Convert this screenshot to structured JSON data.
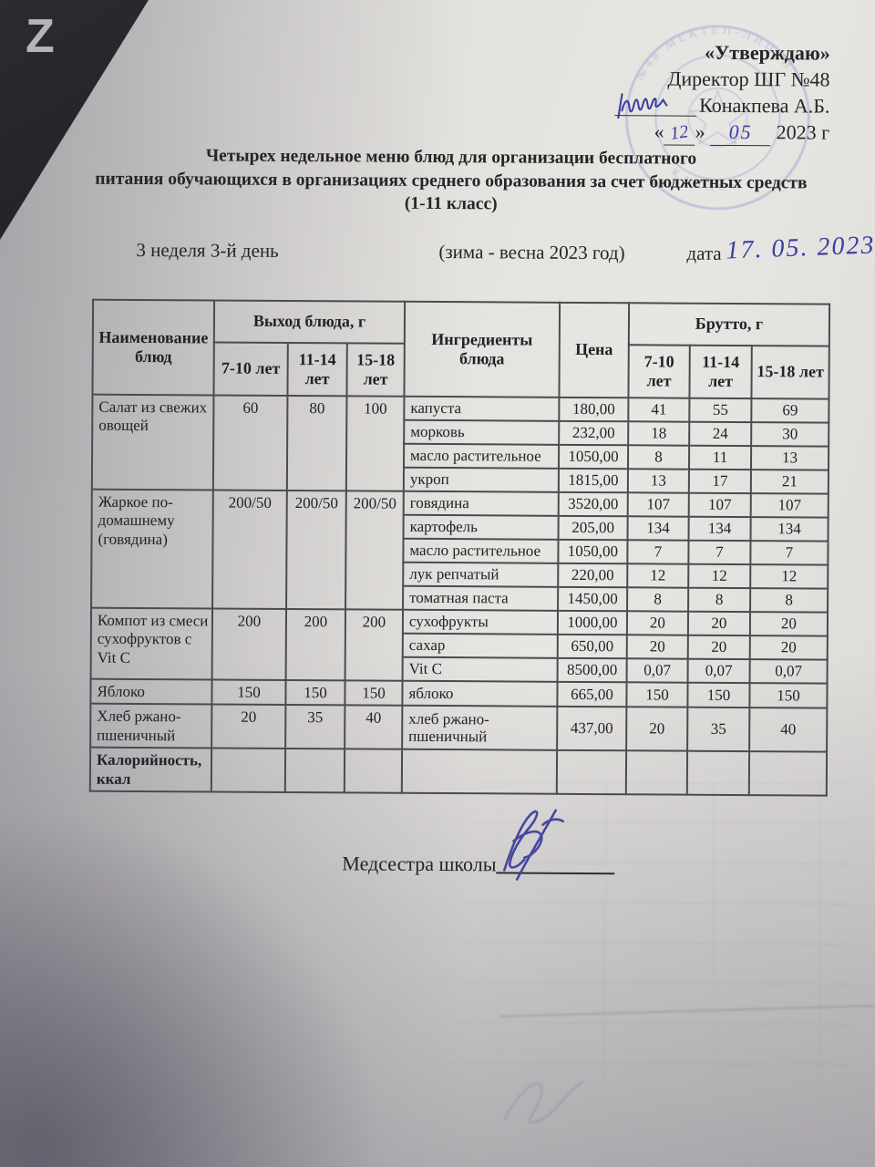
{
  "scene": {
    "keyboard_key": "Z"
  },
  "colors": {
    "ink_blue": "#3a3da3",
    "stamp_blue": "#8f9ed2",
    "paper": "#e5e3df"
  },
  "approval": {
    "approve_word": "«Утверждаю»",
    "director_line": "Директор ШГ №48",
    "director_name": "Конакпева А.Б.",
    "open_quote": "«",
    "close_quote": "»",
    "hand_day": "12",
    "hand_month": "05",
    "year_text": "2023 г"
  },
  "stamp": {
    "arc_top": "№48 МЕКТЕП-ЛИЦЕЙ",
    "arc_bottom": "ҚАЛАСЫ"
  },
  "title": {
    "line1": "Четырех недельное меню блюд для организации бесплатного",
    "line2": "питания обучающихся в организациях среднего образования за счет бюджетных средств",
    "line3": "(1-11 класс)"
  },
  "meta": {
    "week": "3 неделя 3-й день",
    "season": "(зима - весна 2023 год)",
    "date_label": "дата",
    "hand_date": "17. 05. 2023"
  },
  "table": {
    "headers": {
      "name": "Наименование блюд",
      "output": "Выход блюда, г",
      "ingredients": "Ингредиенты блюда",
      "price": "Цена",
      "brutto": "Брутто, г",
      "age1": "7-10 лет",
      "age2": "11-14 лет",
      "age3": "15-18 лет"
    },
    "rows": [
      {
        "dish": "Салат из свежих овощей",
        "out": [
          "60",
          "80",
          "100"
        ],
        "bold": false,
        "ingredients": [
          {
            "name": "капуста",
            "price": "180,00",
            "b": [
              "41",
              "55",
              "69"
            ]
          },
          {
            "name": "морковь",
            "price": "232,00",
            "b": [
              "18",
              "24",
              "30"
            ]
          },
          {
            "name": "масло растительное",
            "price": "1050,00",
            "b": [
              "8",
              "11",
              "13"
            ]
          },
          {
            "name": "укроп",
            "price": "1815,00",
            "b": [
              "13",
              "17",
              "21"
            ]
          }
        ]
      },
      {
        "dish": "Жаркое по-домашнему (говядина)",
        "out": [
          "200/50",
          "200/50",
          "200/50"
        ],
        "bold": false,
        "ingredients": [
          {
            "name": "говядина",
            "price": "3520,00",
            "b": [
              "107",
              "107",
              "107"
            ]
          },
          {
            "name": "картофель",
            "price": "205,00",
            "b": [
              "134",
              "134",
              "134"
            ]
          },
          {
            "name": "масло растительное",
            "price": "1050,00",
            "b": [
              "7",
              "7",
              "7"
            ]
          },
          {
            "name": "лук репчатый",
            "price": "220,00",
            "b": [
              "12",
              "12",
              "12"
            ]
          },
          {
            "name": "томатная паста",
            "price": "1450,00",
            "b": [
              "8",
              "8",
              "8"
            ]
          }
        ]
      },
      {
        "dish": "Компот из смеси сухофруктов с Vit C",
        "out": [
          "200",
          "200",
          "200"
        ],
        "bold": false,
        "ingredients": [
          {
            "name": "сухофрукты",
            "price": "1000,00",
            "b": [
              "20",
              "20",
              "20"
            ]
          },
          {
            "name": "сахар",
            "price": "650,00",
            "b": [
              "20",
              "20",
              "20"
            ]
          },
          {
            "name": "Vit C",
            "price": "8500,00",
            "b": [
              "0,07",
              "0,07",
              "0,07"
            ]
          }
        ]
      },
      {
        "dish": "Яблоко",
        "out": [
          "150",
          "150",
          "150"
        ],
        "bold": false,
        "ingredients": [
          {
            "name": "яблоко",
            "price": "665,00",
            "b": [
              "150",
              "150",
              "150"
            ]
          }
        ]
      },
      {
        "dish": "Хлеб ржано-пшеничный",
        "out": [
          "20",
          "35",
          "40"
        ],
        "bold": false,
        "ingredients": [
          {
            "name": "хлеб ржано-пшеничный",
            "price": "437,00",
            "b": [
              "20",
              "35",
              "40"
            ]
          }
        ]
      },
      {
        "dish": "Калорийность, ккал",
        "out": [
          "",
          "",
          ""
        ],
        "bold": true,
        "ingredients": [
          {
            "name": "",
            "price": "",
            "b": [
              "",
              "",
              ""
            ]
          }
        ]
      }
    ]
  },
  "footer": {
    "nurse_label": "Медсестра школы"
  }
}
